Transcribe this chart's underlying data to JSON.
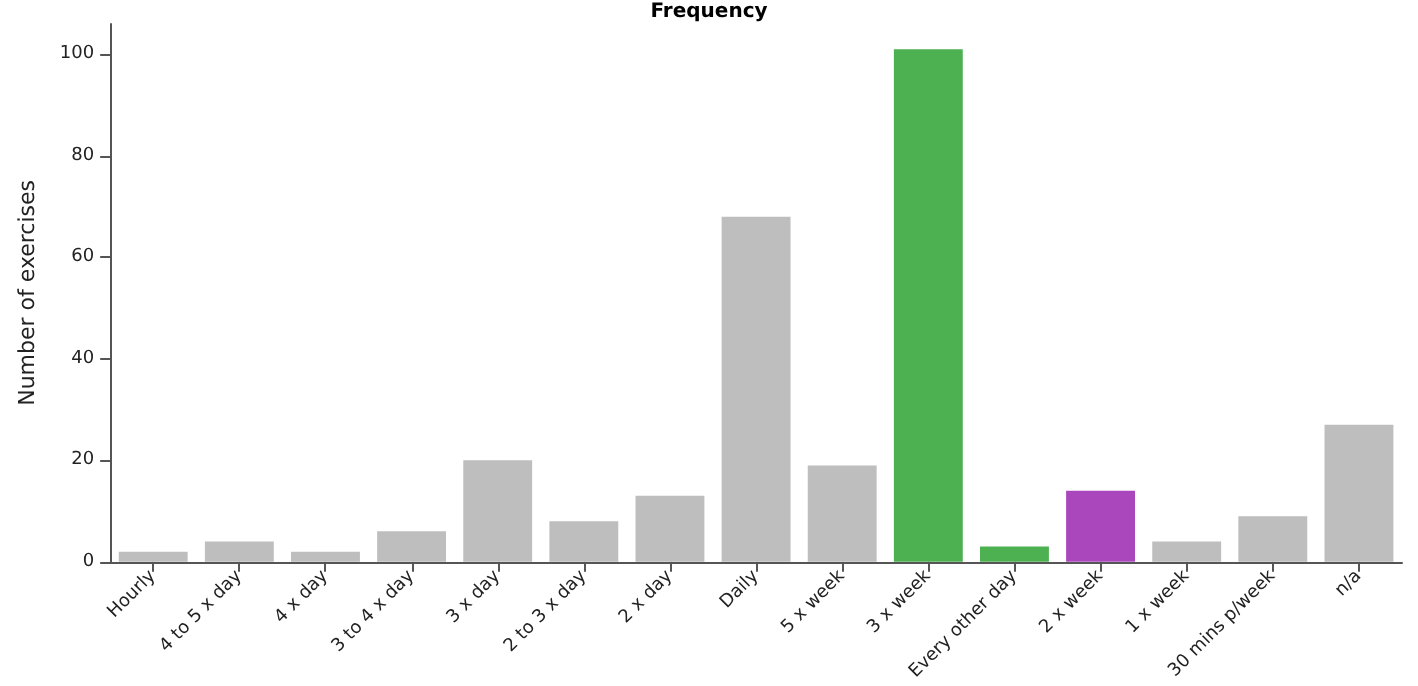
{
  "chart_data": {
    "type": "bar",
    "title": "Frequency",
    "ylabel": "Number of exercises",
    "categories": [
      "Hourly",
      "4 to 5 x day",
      "4 x day",
      "3 to 4 x day",
      "3 x day",
      "2 to 3 x day",
      "2 x day",
      "Daily",
      "5 x week",
      "3 x week",
      "Every other day",
      "2 x week",
      "1 x week",
      "30 mins p/week",
      "n/a"
    ],
    "values": [
      2,
      4,
      2,
      6,
      20,
      8,
      13,
      68,
      19,
      101,
      3,
      14,
      4,
      9,
      27
    ],
    "colors": [
      "#bebebe",
      "#bebebe",
      "#bebebe",
      "#bebebe",
      "#bebebe",
      "#bebebe",
      "#bebebe",
      "#bebebe",
      "#bebebe",
      "#4db151",
      "#4db151",
      "#ab47bc",
      "#bebebe",
      "#bebebe",
      "#bebebe"
    ],
    "ylim": [
      0,
      106
    ],
    "yticks": [
      0,
      20,
      40,
      60,
      80,
      100
    ],
    "grid": false
  }
}
